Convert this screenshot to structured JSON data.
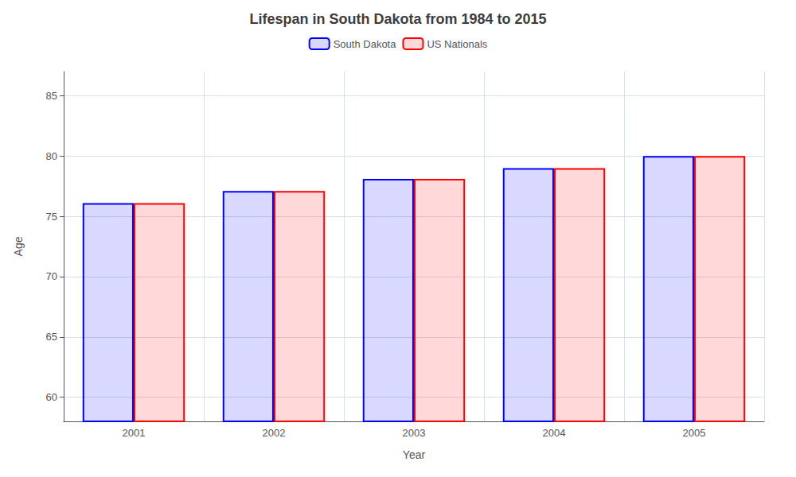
{
  "chart_data": {
    "type": "bar",
    "title": "Lifespan in South Dakota from 1984 to 2015",
    "x_label": "Year",
    "y_label": "Age",
    "categories": [
      "2001",
      "2002",
      "2003",
      "2004",
      "2005"
    ],
    "series": [
      {
        "name": "South Dakota",
        "color": "#0000ff",
        "values": [
          76.1,
          77.1,
          78.1,
          79.0,
          80.0
        ]
      },
      {
        "name": "US Nationals",
        "color": "#ff0000",
        "values": [
          76.1,
          77.1,
          78.1,
          79.0,
          80.0
        ]
      }
    ],
    "ylim": [
      58,
      87
    ],
    "yticks": [
      60,
      65,
      70,
      75,
      80,
      85
    ],
    "grid": true,
    "legend": "top"
  }
}
